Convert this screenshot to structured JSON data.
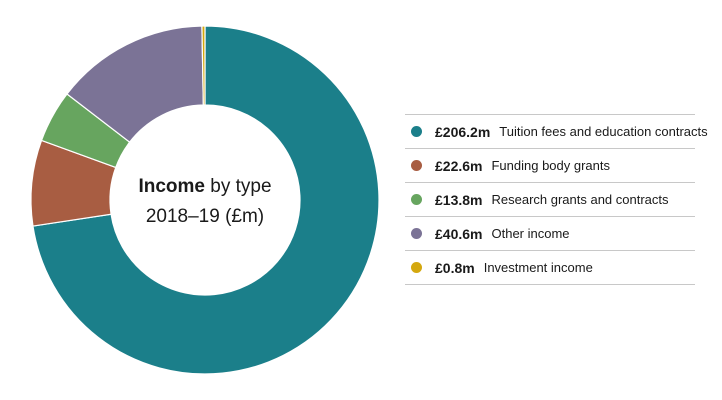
{
  "chart_data": {
    "type": "pie",
    "subtype": "donut",
    "title_bold": "Income",
    "title_rest": " by type",
    "subtitle": "2018–19 (£m)",
    "legend_position": "right",
    "slices": [
      {
        "display": "£206.2m",
        "value": 206.2,
        "label": "Tuition fees and education contracts",
        "color": "#1b7f8a"
      },
      {
        "display": "£22.6m",
        "value": 22.6,
        "label": "Funding body grants",
        "color": "#a85d42"
      },
      {
        "display": "£13.8m",
        "value": 13.8,
        "label": "Research grants and contracts",
        "color": "#67a55f"
      },
      {
        "display": "£40.6m",
        "value": 40.6,
        "label": "Other income",
        "color": "#7b7396"
      },
      {
        "display": "£0.8m",
        "value": 0.8,
        "label": "Investment income",
        "color": "#d4a80f"
      }
    ]
  }
}
